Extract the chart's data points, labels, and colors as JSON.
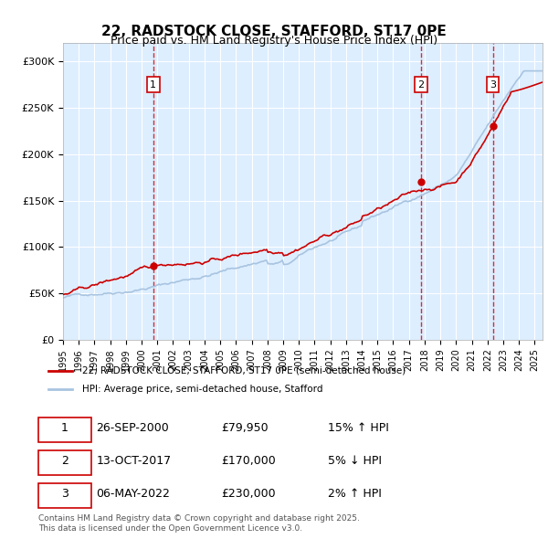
{
  "title_line1": "22, RADSTOCK CLOSE, STAFFORD, ST17 0PE",
  "title_line2": "Price paid vs. HM Land Registry's House Price Index (HPI)",
  "ylabel_ticks": [
    "£0",
    "£50K",
    "£100K",
    "£150K",
    "£200K",
    "£250K",
    "£300K"
  ],
  "ytick_values": [
    0,
    50000,
    100000,
    150000,
    200000,
    250000,
    300000
  ],
  "ylim": [
    0,
    320000
  ],
  "xlim_start": 1995.0,
  "xlim_end": 2025.5,
  "xtick_years": [
    1995,
    1996,
    1997,
    1998,
    1999,
    2000,
    2001,
    2002,
    2003,
    2004,
    2005,
    2006,
    2007,
    2008,
    2009,
    2010,
    2011,
    2012,
    2013,
    2014,
    2015,
    2016,
    2017,
    2018,
    2019,
    2020,
    2021,
    2022,
    2023,
    2024,
    2025
  ],
  "sale_dates": [
    2000.74,
    2017.78,
    2022.34
  ],
  "sale_prices": [
    79950,
    170000,
    230000
  ],
  "sale_labels": [
    "1",
    "2",
    "3"
  ],
  "hpi_color": "#a8c4e0",
  "price_color": "#cc0000",
  "bg_color": "#ddeeff",
  "sale_marker_color": "#cc0000",
  "legend_entries": [
    "22, RADSTOCK CLOSE, STAFFORD, ST17 0PE (semi-detached house)",
    "HPI: Average price, semi-detached house, Stafford"
  ],
  "table_rows": [
    [
      "1",
      "26-SEP-2000",
      "£79,950",
      "15% ↑ HPI"
    ],
    [
      "2",
      "13-OCT-2017",
      "£170,000",
      "5% ↓ HPI"
    ],
    [
      "3",
      "06-MAY-2022",
      "£230,000",
      "2% ↑ HPI"
    ]
  ],
  "footer_text": "Contains HM Land Registry data © Crown copyright and database right 2025.\nThis data is licensed under the Open Government Licence v3.0.",
  "dashed_line_color": "#cc0000",
  "grid_color": "#ffffff"
}
